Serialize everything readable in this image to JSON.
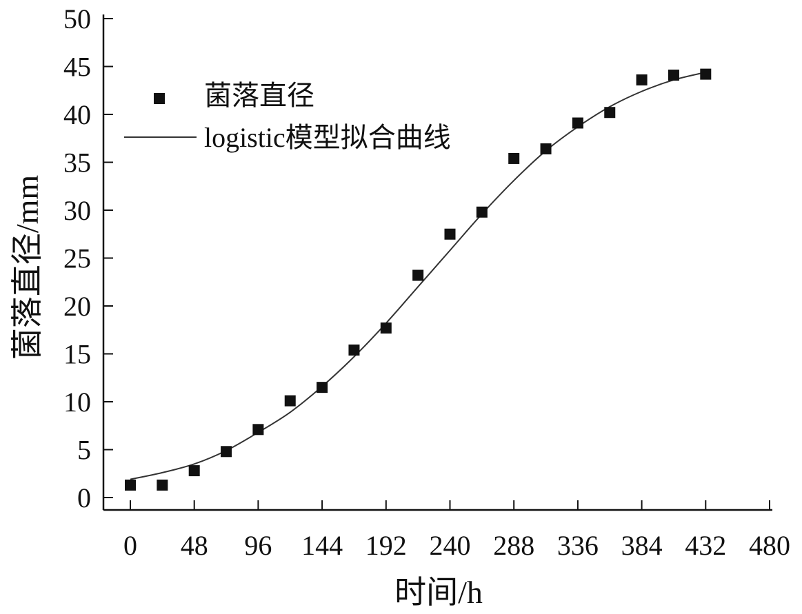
{
  "chart_data": {
    "type": "scatter",
    "title": "",
    "xlabel": "时间/h",
    "ylabel": "菌落直径/mm",
    "xlim": [
      0,
      480
    ],
    "ylim": [
      0,
      50
    ],
    "x_ticks": [
      0,
      48,
      96,
      144,
      192,
      240,
      288,
      336,
      384,
      432,
      480
    ],
    "y_ticks": [
      0,
      5,
      10,
      15,
      20,
      25,
      30,
      35,
      40,
      45,
      50
    ],
    "grid": false,
    "legend_position": "top-left",
    "series": [
      {
        "name": "菌落直径",
        "kind": "scatter",
        "marker": "square",
        "color": "#111111",
        "x": [
          0,
          24,
          48,
          72,
          96,
          120,
          144,
          168,
          192,
          216,
          240,
          264,
          288,
          312,
          336,
          360,
          384,
          408,
          432
        ],
        "y": [
          1.3,
          1.3,
          2.8,
          4.8,
          7.1,
          10.1,
          11.5,
          15.4,
          17.7,
          23.2,
          27.5,
          29.8,
          35.4,
          36.4,
          39.1,
          40.2,
          43.6,
          44.1,
          44.2
        ]
      },
      {
        "name": "logistic模型拟合曲线",
        "kind": "line",
        "color": "#333333",
        "x": [
          0,
          24,
          48,
          72,
          96,
          120,
          144,
          168,
          192,
          216,
          240,
          264,
          288,
          312,
          336,
          360,
          384,
          408,
          432
        ],
        "y": [
          1.9,
          2.6,
          3.5,
          4.9,
          6.8,
          8.9,
          11.6,
          14.7,
          18.2,
          22.0,
          25.8,
          29.6,
          33.1,
          36.2,
          38.7,
          40.8,
          42.4,
          43.6,
          44.4
        ]
      }
    ]
  }
}
